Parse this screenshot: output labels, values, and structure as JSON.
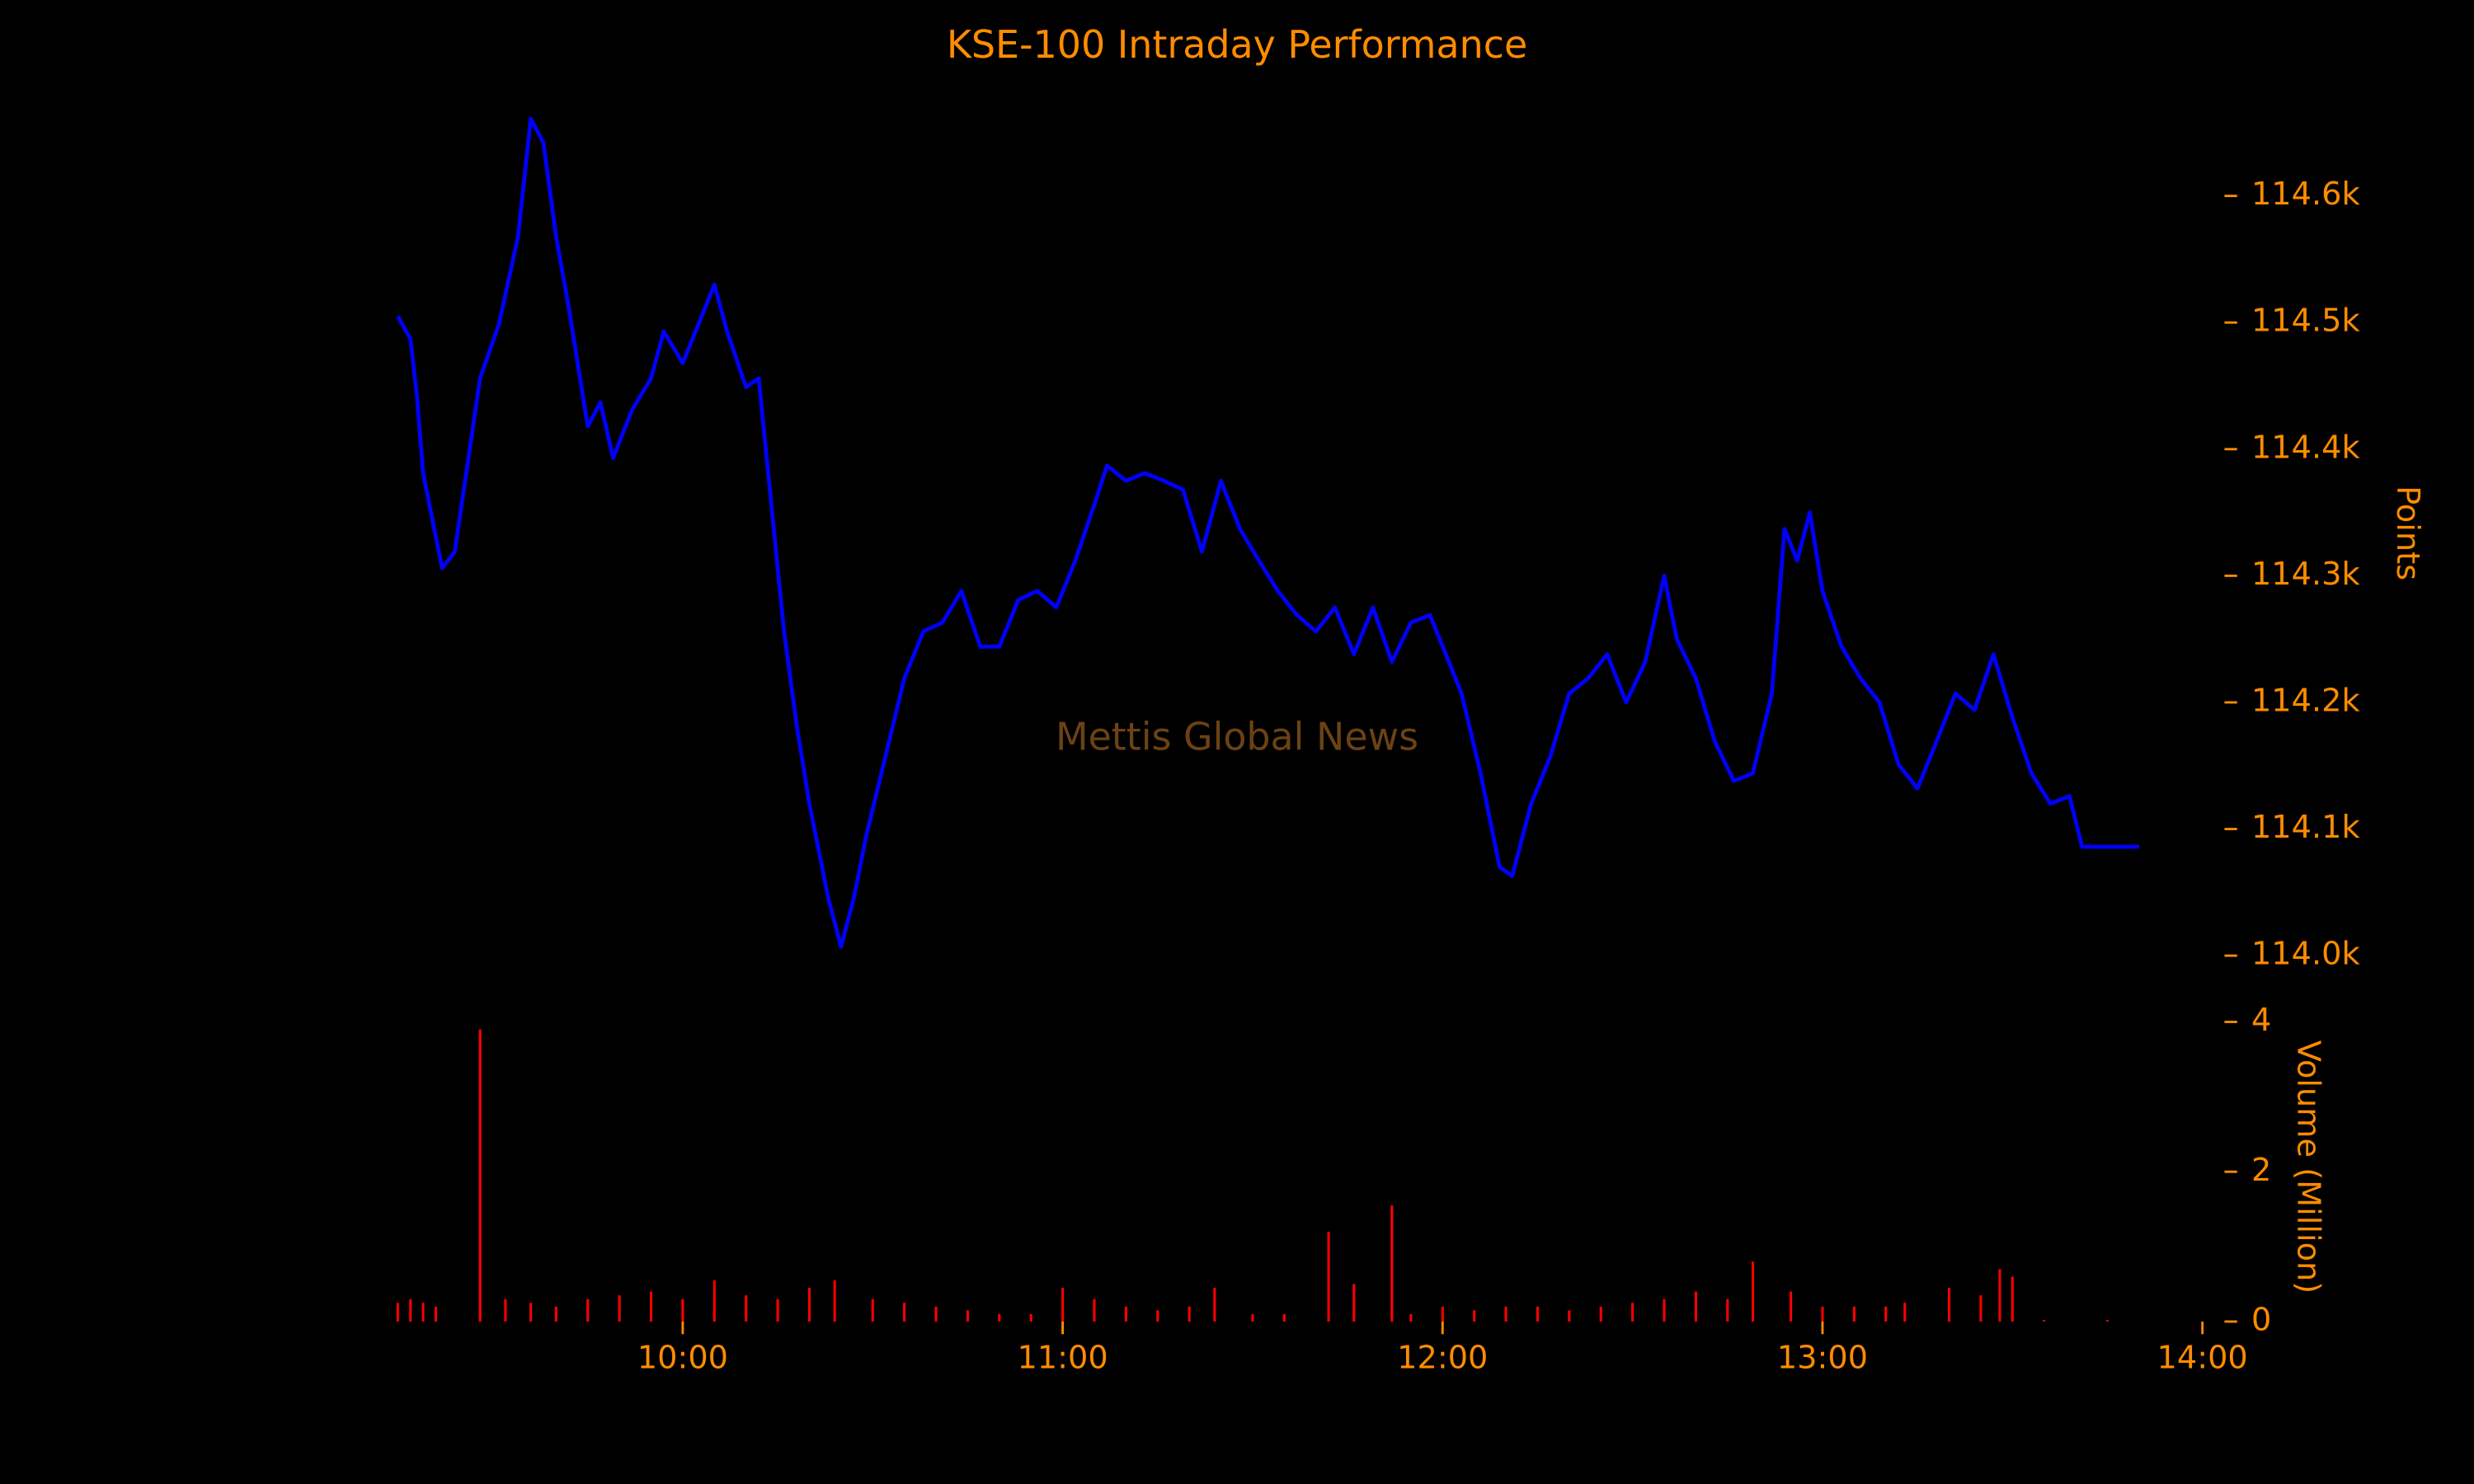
{
  "chart_data": [
    {
      "type": "line",
      "title": "KSE-100 Intraday Performance",
      "watermark": "Mettis Global News",
      "ylabel": "Points",
      "color": "#0000ff",
      "x": [
        "09:15",
        "09:17",
        "09:18",
        "09:19",
        "09:20",
        "09:22",
        "09:24",
        "09:28",
        "09:31",
        "09:34",
        "09:36",
        "09:38",
        "09:40",
        "09:42",
        "09:45",
        "09:47",
        "09:49",
        "09:52",
        "09:55",
        "09:57",
        "10:00",
        "10:03",
        "10:05",
        "10:07",
        "10:10",
        "10:12",
        "10:14",
        "10:16",
        "10:18",
        "10:20",
        "10:23",
        "10:25",
        "10:27",
        "10:29",
        "10:32",
        "10:35",
        "10:38",
        "10:41",
        "10:44",
        "10:47",
        "10:50",
        "10:53",
        "10:56",
        "10:59",
        "11:02",
        "11:05",
        "11:07",
        "11:10",
        "11:13",
        "11:16",
        "11:19",
        "11:22",
        "11:25",
        "11:28",
        "11:31",
        "11:34",
        "11:37",
        "11:40",
        "11:43",
        "11:46",
        "11:49",
        "11:52",
        "11:55",
        "11:58",
        "12:01",
        "12:03",
        "12:06",
        "12:09",
        "12:11",
        "12:14",
        "12:17",
        "12:20",
        "12:23",
        "12:26",
        "12:29",
        "12:32",
        "12:35",
        "12:37",
        "12:40",
        "12:43",
        "12:46",
        "12:49",
        "12:52",
        "12:54",
        "12:56",
        "12:58",
        "13:00",
        "13:03",
        "13:06",
        "13:09",
        "13:12",
        "13:15",
        "13:18",
        "13:21",
        "13:24",
        "13:27",
        "13:30",
        "13:33",
        "13:36",
        "13:39",
        "13:41",
        "13:50"
      ],
      "values": [
        114505,
        114487,
        114443,
        114381,
        114356,
        114306,
        114319,
        114456,
        114499,
        114568,
        114661,
        114642,
        114568,
        114512,
        114418,
        114437,
        114393,
        114431,
        114456,
        114493,
        114468,
        114505,
        114530,
        114493,
        114449,
        114456,
        114356,
        114256,
        114182,
        114120,
        114045,
        114007,
        114045,
        114095,
        114157,
        114219,
        114256,
        114263,
        114288,
        114244,
        114244,
        114281,
        114288,
        114275,
        114312,
        114356,
        114387,
        114375,
        114381,
        114375,
        114368,
        114319,
        114375,
        114337,
        114312,
        114288,
        114269,
        114256,
        114275,
        114238,
        114275,
        114232,
        114263,
        114269,
        114232,
        114207,
        114144,
        114070,
        114063,
        114120,
        114157,
        114207,
        114219,
        114238,
        114200,
        114232,
        114300,
        114250,
        114219,
        114169,
        114138,
        114144,
        114207,
        114337,
        114312,
        114350,
        114288,
        114244,
        114219,
        114200,
        114151,
        114132,
        114169,
        114207,
        114194,
        114238,
        114188,
        114144,
        114120,
        114126,
        114086,
        114086
      ],
      "xlim": [
        "09:15",
        "14:00"
      ],
      "ylim": [
        113990,
        114680
      ],
      "yticks": [
        {
          "value": 114000,
          "label": "114.0k"
        },
        {
          "value": 114100,
          "label": "114.1k"
        },
        {
          "value": 114200,
          "label": "114.2k"
        },
        {
          "value": 114300,
          "label": "114.3k"
        },
        {
          "value": 114400,
          "label": "114.4k"
        },
        {
          "value": 114500,
          "label": "114.5k"
        },
        {
          "value": 114600,
          "label": "114.6k"
        }
      ]
    },
    {
      "type": "bar",
      "ylabel": "Volume (Million)",
      "color": "#ff0000",
      "x": [
        "09:15",
        "09:17",
        "09:19",
        "09:21",
        "09:28",
        "09:32",
        "09:36",
        "09:40",
        "09:45",
        "09:50",
        "09:55",
        "10:00",
        "10:05",
        "10:10",
        "10:15",
        "10:20",
        "10:24",
        "10:30",
        "10:35",
        "10:40",
        "10:45",
        "10:50",
        "10:55",
        "11:00",
        "11:05",
        "11:10",
        "11:15",
        "11:20",
        "11:24",
        "11:30",
        "11:35",
        "11:42",
        "11:46",
        "11:52",
        "11:55",
        "12:00",
        "12:05",
        "12:10",
        "12:15",
        "12:20",
        "12:25",
        "12:30",
        "12:35",
        "12:40",
        "12:45",
        "12:49",
        "12:55",
        "13:00",
        "13:05",
        "13:10",
        "13:13",
        "13:20",
        "13:25",
        "13:28",
        "13:30",
        "13:35",
        "13:45"
      ],
      "values": [
        0.25,
        0.3,
        0.25,
        0.2,
        3.9,
        0.3,
        0.25,
        0.2,
        0.3,
        0.35,
        0.4,
        0.3,
        0.55,
        0.35,
        0.3,
        0.45,
        0.55,
        0.3,
        0.25,
        0.2,
        0.15,
        0.1,
        0.1,
        0.45,
        0.3,
        0.2,
        0.15,
        0.2,
        0.45,
        0.1,
        0.1,
        1.2,
        0.5,
        1.55,
        0.1,
        0.2,
        0.15,
        0.2,
        0.2,
        0.15,
        0.2,
        0.25,
        0.3,
        0.4,
        0.3,
        0.8,
        0.4,
        0.2,
        0.2,
        0.2,
        0.25,
        0.45,
        0.35,
        0.7,
        0.6,
        0.02,
        0.02
      ],
      "xlim": [
        "09:15",
        "14:00"
      ],
      "xticks": [
        "10:00",
        "11:00",
        "12:00",
        "13:00",
        "14:00"
      ],
      "ylim": [
        0,
        4
      ],
      "yticks": [
        0,
        2,
        4
      ]
    }
  ]
}
